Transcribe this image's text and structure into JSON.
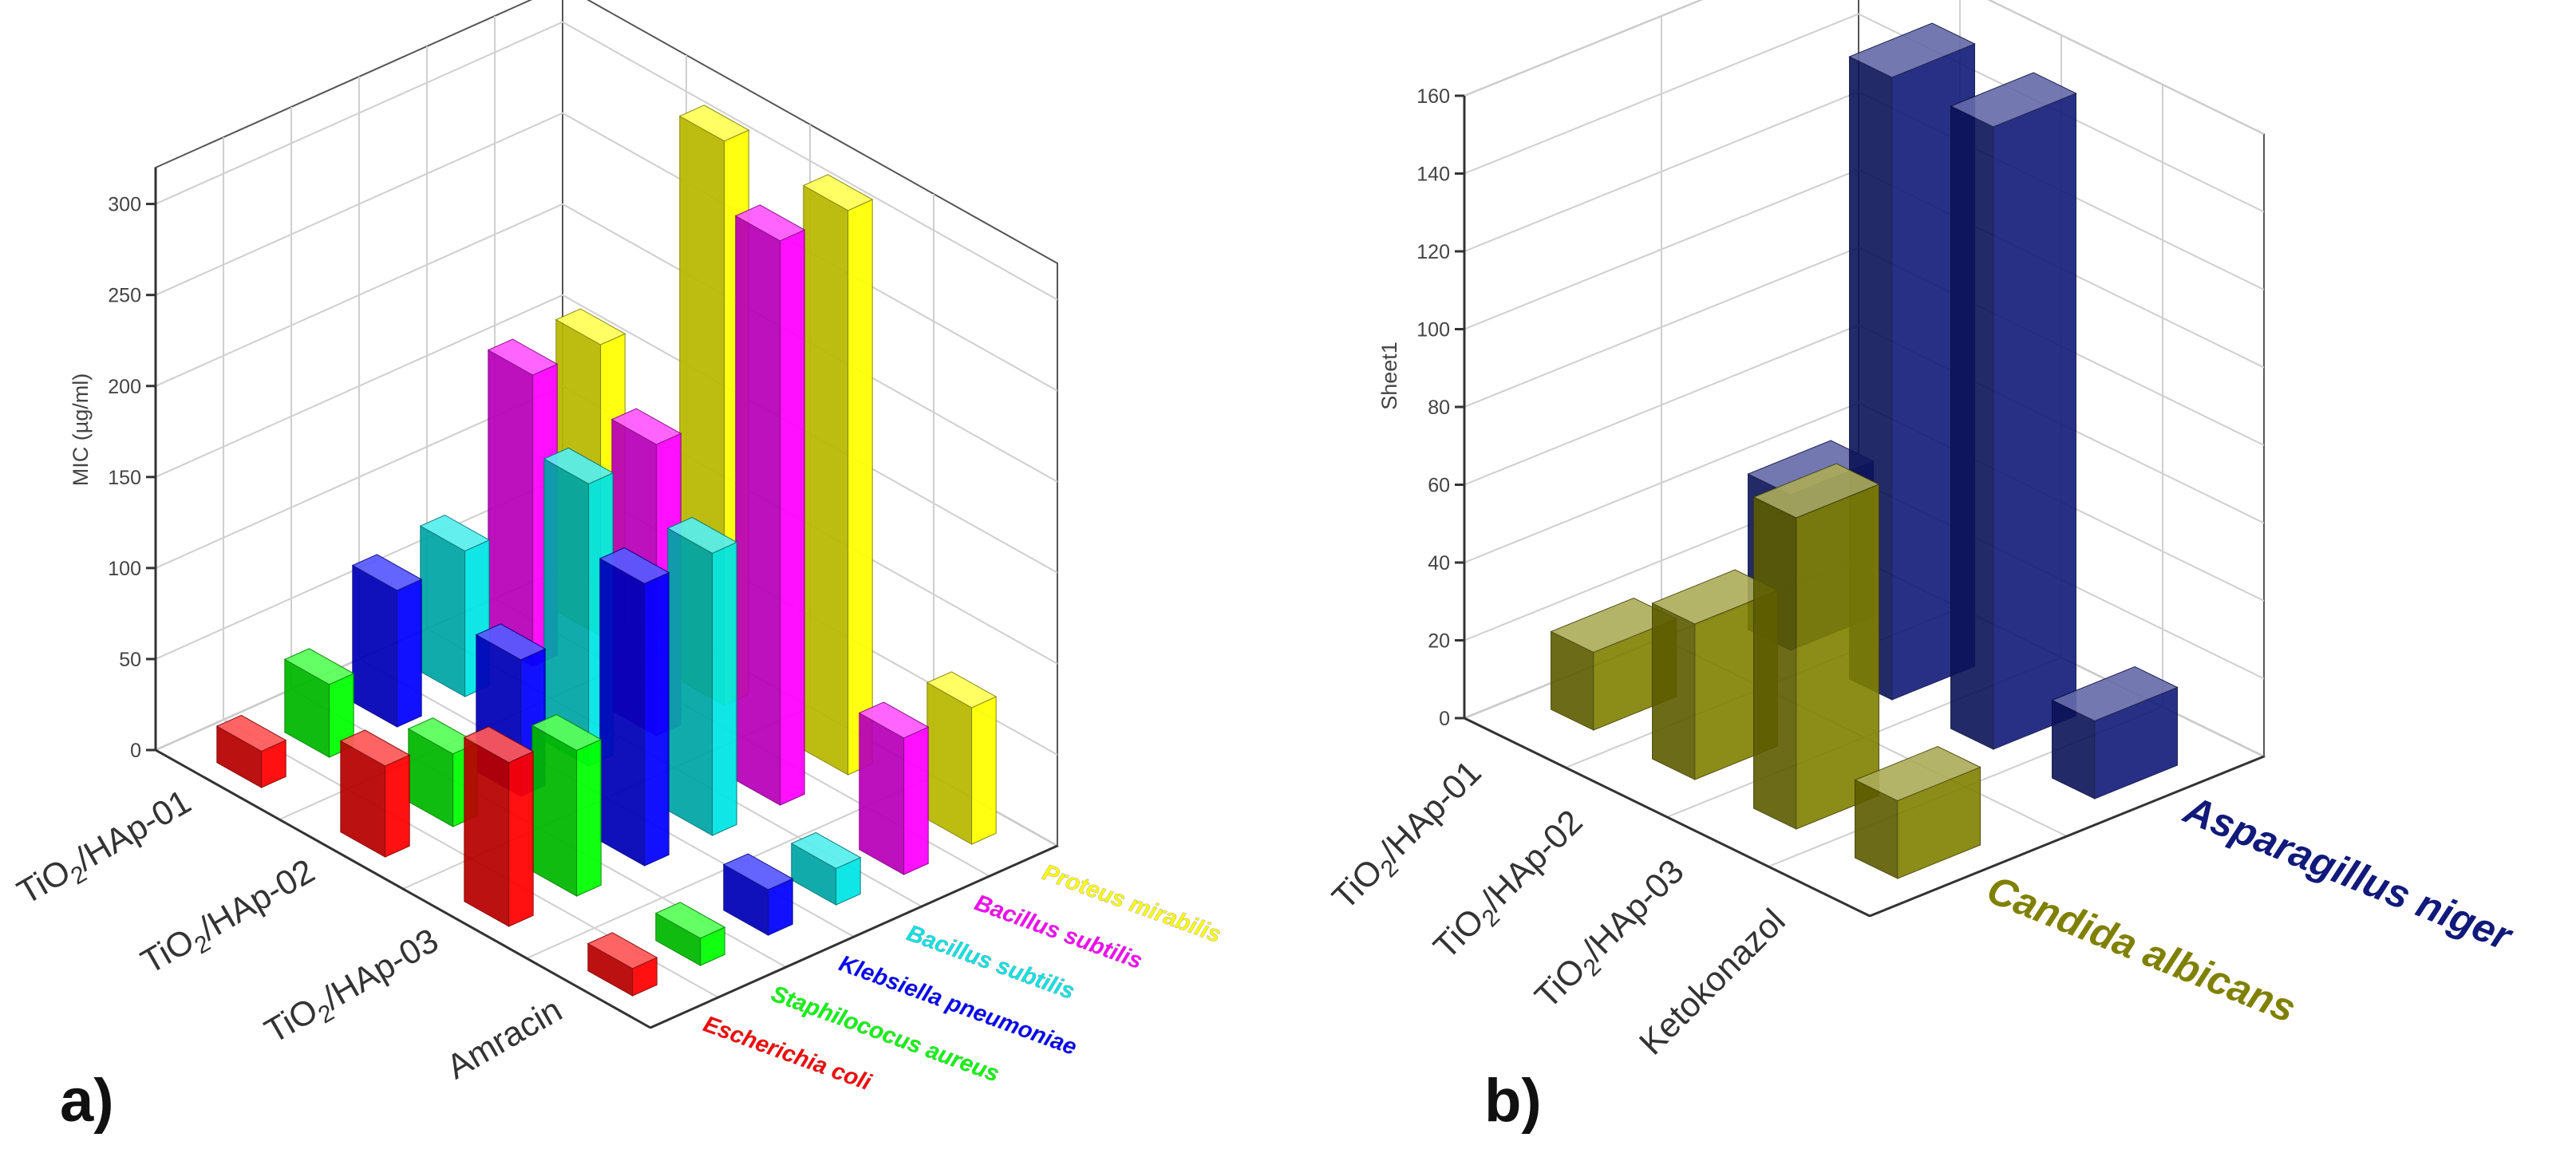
{
  "chart_data": [
    {
      "type": "bar3d",
      "panel_label": "a)",
      "ylabel": "MIC (µg/ml)",
      "zlim": [
        0,
        320
      ],
      "zticks": [
        0,
        50,
        100,
        150,
        200,
        250,
        300
      ],
      "categories": [
        "TiO2/HAp-01",
        "TiO2/HAp-02",
        "TiO2/HAp-03",
        "Amracin"
      ],
      "series": [
        {
          "name": "Escherichia coli",
          "color": "#ff0000",
          "values": [
            20,
            50,
            90,
            15
          ]
        },
        {
          "name": "Staphilococus aureus",
          "color": "#00ff00",
          "values": [
            40,
            40,
            80,
            15
          ]
        },
        {
          "name": "Klebsiella pneumoniae",
          "color": "#0000ff",
          "values": [
            75,
            75,
            155,
            25
          ]
        },
        {
          "name": "Bacillus subtilis",
          "color": "#00e5e5",
          "values": [
            80,
            155,
            155,
            20
          ]
        },
        {
          "name": "Bacillus subtilis",
          "color": "#ff00ff",
          "values": [
            160,
            160,
            310,
            75
          ]
        },
        {
          "name": "Proteus mirabilis",
          "color": "#ffff00",
          "values": [
            160,
            310,
            310,
            75
          ]
        }
      ]
    },
    {
      "type": "bar3d",
      "panel_label": "b)",
      "ylabel": "Sheet1",
      "zlim": [
        0,
        160
      ],
      "zticks": [
        0,
        20,
        40,
        60,
        80,
        100,
        120,
        140,
        160
      ],
      "categories": [
        "TiO2/HAp-01",
        "TiO2/HAp-02",
        "TiO2/HAp-03",
        "Ketokonazol"
      ],
      "series": [
        {
          "name": "Candida albicans",
          "color": "#808000",
          "values": [
            20,
            40,
            80,
            20
          ]
        },
        {
          "name": "Asparagillus niger",
          "color": "#111a7a",
          "values": [
            40,
            160,
            160,
            20
          ]
        }
      ]
    }
  ]
}
